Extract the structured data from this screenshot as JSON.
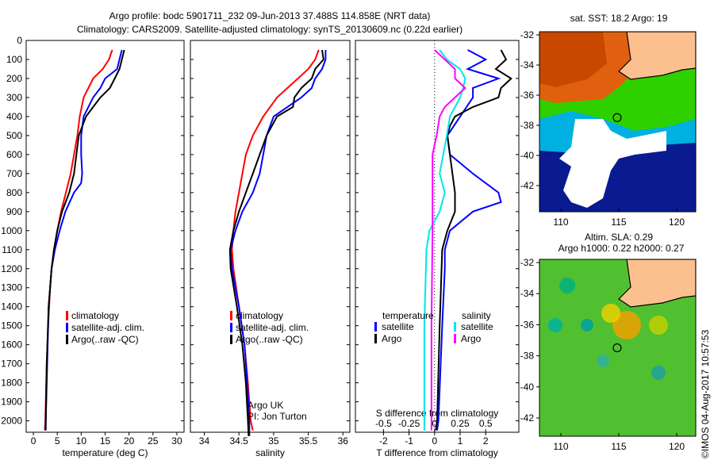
{
  "title_line1": "Argo profile: bodc 5901711_232 09-Jun-2013 37.488S 114.858E (NRT data)",
  "title_line2": "Climatology: CARS2009. Satellite-adjusted climatology: synTS_20130609.nc (0.22d earlier)",
  "credit": "©IMOS 04-Aug-2017 10:57:53",
  "colors": {
    "climatology": "#ff0000",
    "satellite": "#0000ff",
    "argo": "#000000",
    "s_satellite": "#00e5ee",
    "s_argo": "#ff00ff"
  },
  "chart_data": [
    {
      "type": "line",
      "xlabel": "temperature (deg C)",
      "xlim": [
        -1.5,
        31.5
      ],
      "ylim": [
        2060,
        0
      ],
      "xticks": [
        0,
        5,
        10,
        15,
        20,
        25,
        30
      ],
      "yticks": [
        0,
        100,
        200,
        300,
        400,
        500,
        600,
        700,
        800,
        900,
        1000,
        1100,
        1200,
        1300,
        1400,
        1500,
        1600,
        1700,
        1800,
        1900,
        2000
      ],
      "legend": [
        "climatology",
        "satellite-adj. clim.",
        "Argo(..raw -QC)"
      ],
      "series": [
        {
          "name": "climatology",
          "color": "#ff0000",
          "points": [
            [
              16.5,
              50
            ],
            [
              15.8,
              100
            ],
            [
              14.5,
              150
            ],
            [
              12.5,
              200
            ],
            [
              11.5,
              250
            ],
            [
              10.5,
              300
            ],
            [
              9.7,
              400
            ],
            [
              9.2,
              500
            ],
            [
              8.5,
              600
            ],
            [
              7.8,
              700
            ],
            [
              6.8,
              800
            ],
            [
              5.8,
              900
            ],
            [
              5,
              1000
            ],
            [
              4.3,
              1100
            ],
            [
              3.8,
              1200
            ],
            [
              3.5,
              1300
            ],
            [
              3.1,
              1500
            ],
            [
              2.8,
              1700
            ],
            [
              2.5,
              2000
            ],
            [
              2.4,
              2050
            ]
          ]
        },
        {
          "name": "satellite-adj. clim.",
          "color": "#0000ff",
          "points": [
            [
              18.5,
              50
            ],
            [
              18,
              100
            ],
            [
              17.5,
              150
            ],
            [
              15,
              200
            ],
            [
              14,
              250
            ],
            [
              12.5,
              300
            ],
            [
              11.5,
              350
            ],
            [
              10.5,
              400
            ],
            [
              10,
              500
            ],
            [
              10,
              600
            ],
            [
              10.2,
              700
            ],
            [
              10,
              750
            ],
            [
              8.5,
              800
            ],
            [
              6.7,
              900
            ],
            [
              5.5,
              1000
            ],
            [
              4.5,
              1100
            ],
            [
              3.8,
              1200
            ],
            [
              3.2,
              1400
            ],
            [
              2.9,
              1700
            ],
            [
              2.6,
              2000
            ],
            [
              2.5,
              2050
            ]
          ]
        },
        {
          "name": "Argo(..raw -QC)",
          "color": "#000000",
          "points": [
            [
              19,
              50
            ],
            [
              18.5,
              100
            ],
            [
              18,
              150
            ],
            [
              17,
              200
            ],
            [
              16,
              250
            ],
            [
              14,
              300
            ],
            [
              12.5,
              350
            ],
            [
              11,
              400
            ],
            [
              9.5,
              500
            ],
            [
              9,
              600
            ],
            [
              8.5,
              700
            ],
            [
              7.5,
              800
            ],
            [
              6,
              900
            ],
            [
              5,
              1000
            ],
            [
              4.3,
              1100
            ],
            [
              3.8,
              1200
            ],
            [
              3.2,
              1400
            ],
            [
              2.8,
              1700
            ],
            [
              2.6,
              2000
            ],
            [
              2.6,
              2050
            ]
          ]
        }
      ]
    },
    {
      "type": "line",
      "xlabel": "salinity",
      "xlim": [
        33.8,
        36.1
      ],
      "ylim": [
        2060,
        0
      ],
      "xticks": [
        34,
        34.5,
        35,
        35.5,
        36
      ],
      "legend": [
        "climatology",
        "satellite-adj. clim.",
        "Argo(..raw -QC)"
      ],
      "annotation": [
        "Argo UK",
        "PI: Jon Turton"
      ],
      "series": [
        {
          "name": "climatology",
          "color": "#ff0000",
          "points": [
            [
              35.65,
              50
            ],
            [
              35.6,
              100
            ],
            [
              35.5,
              150
            ],
            [
              35.35,
              200
            ],
            [
              35.2,
              250
            ],
            [
              35.05,
              300
            ],
            [
              34.85,
              400
            ],
            [
              34.7,
              500
            ],
            [
              34.6,
              600
            ],
            [
              34.55,
              700
            ],
            [
              34.5,
              800
            ],
            [
              34.45,
              900
            ],
            [
              34.42,
              1000
            ],
            [
              34.4,
              1100
            ],
            [
              34.42,
              1200
            ],
            [
              34.5,
              1400
            ],
            [
              34.58,
              1600
            ],
            [
              34.63,
              1800
            ],
            [
              34.67,
              2000
            ],
            [
              34.7,
              2050
            ]
          ]
        },
        {
          "name": "satellite-adj. clim.",
          "color": "#0000ff",
          "points": [
            [
              35.75,
              50
            ],
            [
              35.75,
              100
            ],
            [
              35.7,
              150
            ],
            [
              35.6,
              200
            ],
            [
              35.55,
              250
            ],
            [
              35.4,
              300
            ],
            [
              35.2,
              350
            ],
            [
              35.0,
              400
            ],
            [
              34.9,
              500
            ],
            [
              34.85,
              600
            ],
            [
              34.8,
              700
            ],
            [
              34.7,
              800
            ],
            [
              34.55,
              900
            ],
            [
              34.45,
              1000
            ],
            [
              34.38,
              1100
            ],
            [
              34.4,
              1200
            ],
            [
              34.5,
              1400
            ],
            [
              34.58,
              1600
            ],
            [
              34.62,
              1800
            ],
            [
              34.65,
              2000
            ],
            [
              34.65,
              2080
            ]
          ]
        },
        {
          "name": "Argo(..raw -QC)",
          "color": "#000000",
          "points": [
            [
              35.7,
              50
            ],
            [
              35.72,
              100
            ],
            [
              35.6,
              150
            ],
            [
              35.55,
              200
            ],
            [
              35.4,
              250
            ],
            [
              35.3,
              300
            ],
            [
              35.28,
              350
            ],
            [
              35.05,
              400
            ],
            [
              34.9,
              500
            ],
            [
              34.8,
              600
            ],
            [
              34.7,
              700
            ],
            [
              34.6,
              800
            ],
            [
              34.5,
              900
            ],
            [
              34.42,
              1000
            ],
            [
              34.37,
              1100
            ],
            [
              34.38,
              1200
            ],
            [
              34.47,
              1400
            ],
            [
              34.55,
              1600
            ],
            [
              34.6,
              1800
            ],
            [
              34.63,
              2000
            ],
            [
              34.64,
              2080
            ]
          ]
        }
      ]
    },
    {
      "type": "line",
      "xlabel": "T difference from climatology",
      "x2label": "S difference from climatology",
      "xlim": [
        -3.1,
        3.3
      ],
      "ylim": [
        2060,
        0
      ],
      "xticks": [
        -2,
        -1,
        0,
        1,
        2
      ],
      "x2ticks": [
        "-0.5",
        "-0.25",
        "0",
        "0.25",
        "0.5"
      ],
      "legend_titles": [
        "temperature",
        "salinity"
      ],
      "legend": [
        "satellite",
        "Argo",
        "satellite",
        "Argo"
      ],
      "series": [
        {
          "name": "T satellite",
          "color": "#0000ff",
          "axis": "T",
          "points": [
            [
              1.3,
              50
            ],
            [
              2.0,
              100
            ],
            [
              1.3,
              150
            ],
            [
              2.5,
              200
            ],
            [
              1.5,
              250
            ],
            [
              1.5,
              300
            ],
            [
              1.0,
              400
            ],
            [
              0.5,
              500
            ],
            [
              0.6,
              600
            ],
            [
              1.5,
              700
            ],
            [
              2.5,
              800
            ],
            [
              2.6,
              850
            ],
            [
              1.5,
              900
            ],
            [
              0.6,
              1000
            ],
            [
              0.4,
              1100
            ],
            [
              0.4,
              1200
            ],
            [
              0.3,
              1500
            ],
            [
              0.15,
              2000
            ],
            [
              0.1,
              2050
            ]
          ]
        },
        {
          "name": "T Argo",
          "color": "#000000",
          "axis": "T",
          "points": [
            [
              2.6,
              50
            ],
            [
              2.8,
              100
            ],
            [
              2.4,
              150
            ],
            [
              3.0,
              200
            ],
            [
              2.6,
              250
            ],
            [
              2.5,
              300
            ],
            [
              1.5,
              350
            ],
            [
              0.8,
              400
            ],
            [
              0.6,
              450
            ],
            [
              0.5,
              500
            ],
            [
              0.7,
              700
            ],
            [
              0.8,
              800
            ],
            [
              0.8,
              900
            ],
            [
              0.5,
              1000
            ],
            [
              0.3,
              1100
            ],
            [
              0.2,
              1500
            ],
            [
              0.1,
              2000
            ],
            [
              0.05,
              2050
            ]
          ]
        },
        {
          "name": "S satellite",
          "color": "#00e5ee",
          "axis": "S",
          "points": [
            [
              0.05,
              50
            ],
            [
              0.12,
              100
            ],
            [
              0.25,
              150
            ],
            [
              0.3,
              200
            ],
            [
              0.28,
              250
            ],
            [
              0.25,
              300
            ],
            [
              0.15,
              400
            ],
            [
              0.12,
              500
            ],
            [
              0.05,
              700
            ],
            [
              0.1,
              800
            ],
            [
              0.05,
              900
            ],
            [
              -0.05,
              1000
            ],
            [
              -0.08,
              1100
            ],
            [
              -0.1,
              1500
            ],
            [
              -0.1,
              2050
            ]
          ]
        },
        {
          "name": "S Argo",
          "color": "#ff00ff",
          "axis": "S",
          "points": [
            [
              0.0,
              50
            ],
            [
              0.1,
              100
            ],
            [
              0.2,
              150
            ],
            [
              0.2,
              200
            ],
            [
              0.3,
              250
            ],
            [
              0.2,
              300
            ],
            [
              0.1,
              350
            ],
            [
              0.05,
              400
            ],
            [
              0.02,
              500
            ],
            [
              -0.02,
              600
            ],
            [
              -0.02,
              800
            ],
            [
              -0.02,
              1000
            ],
            [
              -0.03,
              1500
            ],
            [
              -0.03,
              2050
            ]
          ]
        }
      ]
    }
  ],
  "maps": [
    {
      "title": "sat. SST: 18.2 Argo: 19",
      "lonticks": [
        110,
        115,
        120
      ],
      "latticks": [
        -32,
        -34,
        -36,
        -38,
        -40,
        -42
      ]
    },
    {
      "title1": "Altim. SLA: 0.29",
      "title2": "Argo h1000: 0.22 h2000: 0.27",
      "lonticks": [
        110,
        115,
        120
      ],
      "latticks": [
        -32,
        -34,
        -36,
        -38,
        -40,
        -42
      ]
    }
  ]
}
